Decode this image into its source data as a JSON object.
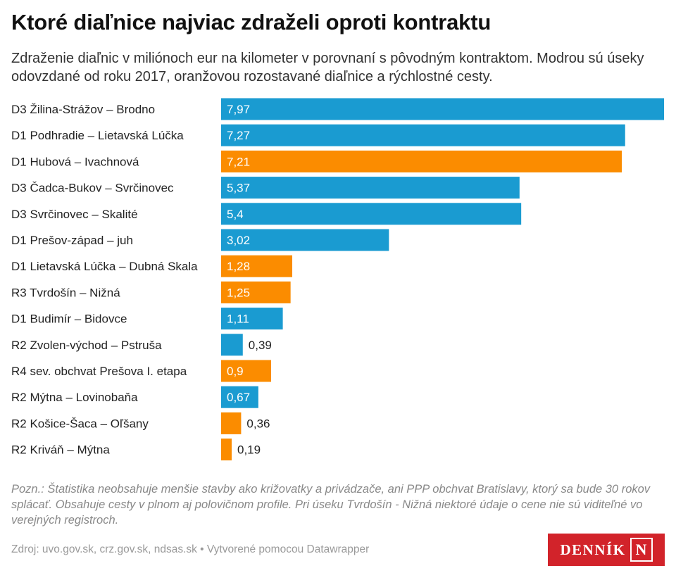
{
  "title": "Ktoré diaľnice najviac zdraželi oproti kontraktu",
  "subtitle": "Zdraženie diaľnic v miliónoch eur na kilometer v porovnaní s pôvodným kontraktom. Modrou sú úseky odovzdané od roku 2017, oranžovou rozostavané diaľnice a rýchlostné cesty.",
  "colors": {
    "blue": "#1a9bd1",
    "orange": "#fb8c00"
  },
  "chart_data": {
    "type": "bar",
    "orientation": "horizontal",
    "xlim": [
      0,
      7.97
    ],
    "rows": [
      {
        "label": "D3 Žilina-Strážov – Brodno",
        "value": 7.97,
        "value_label": "7,97",
        "group": "blue"
      },
      {
        "label": "D1 Podhradie – Lietavská Lúčka",
        "value": 7.27,
        "value_label": "7,27",
        "group": "blue"
      },
      {
        "label": "D1 Hubová – Ivachnová",
        "value": 7.21,
        "value_label": "7,21",
        "group": "orange"
      },
      {
        "label": "D3 Čadca-Bukov – Svrčinovec",
        "value": 5.37,
        "value_label": "5,37",
        "group": "blue"
      },
      {
        "label": "D3 Svrčinovec – Skalité",
        "value": 5.4,
        "value_label": "5,4",
        "group": "blue"
      },
      {
        "label": "D1 Prešov-západ – juh",
        "value": 3.02,
        "value_label": "3,02",
        "group": "blue"
      },
      {
        "label": "D1 Lietavská Lúčka – Dubná Skala",
        "value": 1.28,
        "value_label": "1,28",
        "group": "orange"
      },
      {
        "label": "R3 Tvrdošín – Nižná",
        "value": 1.25,
        "value_label": "1,25",
        "group": "orange"
      },
      {
        "label": "D1 Budimír – Bidovce",
        "value": 1.11,
        "value_label": "1,11",
        "group": "blue"
      },
      {
        "label": "R2 Zvolen-východ – Pstruša",
        "value": 0.39,
        "value_label": "0,39",
        "group": "blue"
      },
      {
        "label": "R4 sev. obchvat Prešova I. etapa",
        "value": 0.9,
        "value_label": "0,9",
        "group": "orange"
      },
      {
        "label": "R2 Mýtna – Lovinobaňa",
        "value": 0.67,
        "value_label": "0,67",
        "group": "blue"
      },
      {
        "label": "R2 Košice-Šaca – Oľšany",
        "value": 0.36,
        "value_label": "0,36",
        "group": "orange"
      },
      {
        "label": "R2 Kriváň – Mýtna",
        "value": 0.19,
        "value_label": "0,19",
        "group": "orange"
      }
    ]
  },
  "note": "Pozn.: Štatistika neobsahuje menšie stavby ako križovatky a privádzače, ani PPP obchvat Bratislavy, ktorý sa bude 30 rokov splácať. Obsahuje cesty v plnom aj polovičnom profile. Pri úseku Tvrdošín - Nižná niektoré údaje o cene nie sú viditeľné vo verejných registroch.",
  "footer": "Zdroj: uvo.gov.sk, crz.gov.sk, ndsas.sk • Vytvorené pomocou Datawrapper",
  "logo": {
    "text": "DENNÍK",
    "mark": "N"
  }
}
